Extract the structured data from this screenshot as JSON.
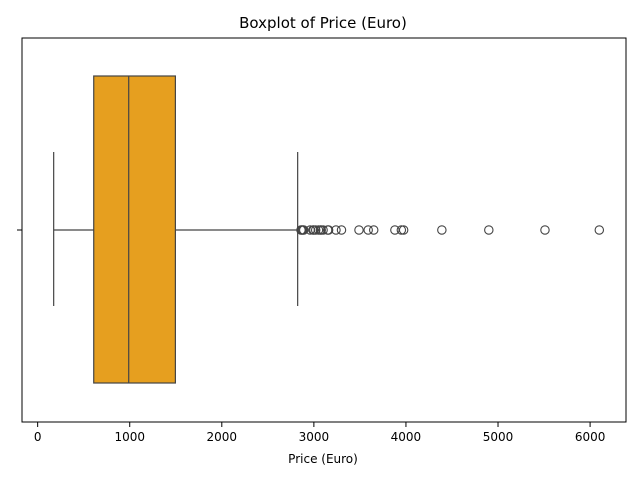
{
  "chart_data": {
    "type": "boxplot",
    "title": "Boxplot of Price (Euro)",
    "xlabel": "Price (Euro)",
    "ylabel": "",
    "xlim": [
      -170,
      6390
    ],
    "xticks": [
      0,
      1000,
      2000,
      3000,
      4000,
      5000,
      6000
    ],
    "xtick_labels": [
      "0",
      "1000",
      "2000",
      "3000",
      "4000",
      "5000",
      "6000"
    ],
    "orientation": "horizontal",
    "box_color": "#e69f1f",
    "line_color": "#444444",
    "stats": {
      "whisker_low": 174,
      "q1": 609,
      "median": 989,
      "q3": 1496,
      "whisker_high": 2824
    },
    "outliers": [
      2860,
      2870,
      2880,
      2890,
      2960,
      2990,
      3000,
      3020,
      3050,
      3070,
      3080,
      3100,
      3150,
      3160,
      3240,
      3300,
      3490,
      3590,
      3650,
      3880,
      3950,
      3975,
      4390,
      4900,
      5510,
      6100
    ]
  }
}
